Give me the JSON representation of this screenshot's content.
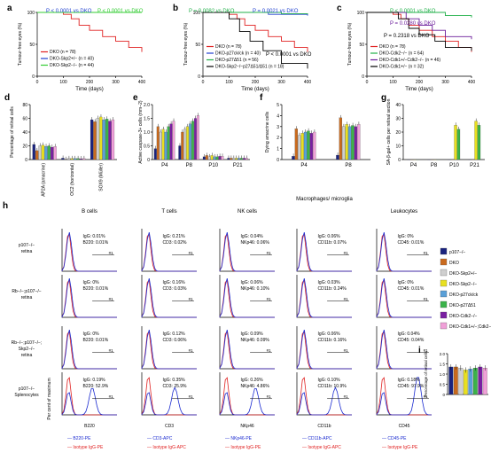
{
  "colors": {
    "dko": "#c0392b",
    "dko_line": "#e02020",
    "skp2": "#33cc33",
    "p27_green": "#22b04a",
    "p27_blue": "#2040d0",
    "black": "#000000",
    "cdk2_purple": "#6a1b9a",
    "bar_p107": "#1a237e",
    "bar_dko": "#c96a1e",
    "bar_skp2het": "#cfcfcf",
    "bar_skp2ko": "#e8e020",
    "bar_p27ck": "#5aa0d8",
    "bar_p27d51": "#3bb34a",
    "bar_cdk2": "#7a1fa2",
    "bar_cdk1cdk2": "#f0a0d8",
    "hist_blue": "#1a2ad0",
    "hist_red": "#e02020"
  },
  "panels": {
    "a": {
      "label": "a",
      "ylabel": "Tumour-free eyes (%)",
      "xlabel": "Time (days)",
      "pvals": [
        "P < 0.0001 vs DKO",
        "P < 0.0001 vs DKO"
      ],
      "legend": [
        "DKO (n = 78)",
        "DKO-Skp2+/− (n = 40)",
        "DKO-Skp2−/− (n = 44)"
      ]
    },
    "b": {
      "label": "b",
      "ylabel": "Tumour-free eyes (%)",
      "xlabel": "Time (days)",
      "pvals": [
        "P = 0.0082 vs DKO",
        "P = 0.0021 vs DKO",
        "P < 0.0001 vs DKO"
      ],
      "legend": [
        "DKO (n = 78)",
        "DKO-p27ck/ck (n = 40)",
        "DKO-p27Δ51 (n = 56)",
        "DKO-Skp2−/−p27Δ51/Δ51 (n = 18)"
      ]
    },
    "c": {
      "label": "c",
      "ylabel": "Tumour-free eyes (%)",
      "xlabel": "Time (days)",
      "pvals": [
        "P < 0.0001 vs DKO",
        "P = 0.0280 vs DKO",
        "P = 0.2318 vs DKO"
      ],
      "legend": [
        "DKO (n = 78)",
        "DKO-Cdk2−/− (n = 64)",
        "DKO-Cdk1+/−Cdk2−/− (n = 46)",
        "DKO-Cdk1+/− (n = 32)"
      ]
    },
    "d": {
      "label": "d",
      "ylabel": "Percentage of retinal cells",
      "groups": [
        "AP2A (amacrine)",
        "OC2 (horizontal)",
        "SOX9 (Müller)"
      ],
      "yticks": [
        "0",
        "20",
        "40",
        "60",
        "80"
      ]
    },
    "e": {
      "label": "e",
      "ylabel": "Active caspase-3+ cells (mm−2)",
      "groups": [
        "P4",
        "P8",
        "P10",
        "P21"
      ],
      "yticks": [
        "0",
        "0.5",
        "1.0",
        "1.5",
        "2.0"
      ]
    },
    "f": {
      "label": "f",
      "ylabel": "Dying amacrine cells",
      "groups": [
        "P4",
        "P8"
      ],
      "yticks": [
        "0",
        "1",
        "2",
        "3",
        "4",
        "5"
      ]
    },
    "g": {
      "label": "g",
      "ylabel": "SA-β-gal+ cells per retinal section",
      "groups": [
        "P4",
        "P8",
        "P10",
        "P21"
      ],
      "yticks": [
        "0",
        "10",
        "20",
        "30",
        "40"
      ]
    },
    "h": {
      "label": "h",
      "columns": [
        "B cells",
        "T cells",
        "NK cells",
        "Macrophages/ microglia",
        "Leukocytes"
      ],
      "rows": [
        "p107−/− retina",
        "Rb−/−;p107−/− retina",
        "Rb−/−;p107−/−; Skp2−/− retina",
        "p107−/− Splenocytes"
      ],
      "stats": [
        [
          [
            "IgG: 0.01%",
            "B220: 0.01%"
          ],
          [
            "IgG: 0.21%",
            "CD3: 0.02%"
          ],
          [
            "IgG: 0.04%",
            "NKp46: 0.06%"
          ],
          [
            "IgG: 0.06%",
            "CD11b: 0.07%"
          ],
          [
            "IgG: 0%",
            "CD45: 0.01%"
          ]
        ],
        [
          [
            "IgG: 0%",
            "B220: 0.01%"
          ],
          [
            "IgG: 0.16%",
            "CD3: 0.03%"
          ],
          [
            "IgG: 0.06%",
            "NKp46: 0.10%"
          ],
          [
            "IgG: 0.03%",
            "CD11b: 0.24%"
          ],
          [
            "IgG: 0%",
            "CD45: 0.01%"
          ]
        ],
        [
          [
            "IgG: 0%",
            "B220: 0.01%"
          ],
          [
            "IgG: 0.12%",
            "CD3: 0.06%"
          ],
          [
            "IgG: 0.09%",
            "NKp46: 0.09%"
          ],
          [
            "IgG: 0.06%",
            "CD11b: 0.16%"
          ],
          [
            "IgG: 0.04%",
            "CD45: 0.04%"
          ]
        ],
        [
          [
            "IgG: 0.19%",
            "B220: 52.9%"
          ],
          [
            "IgG: 0.35%",
            "CD3: 25.9%"
          ],
          [
            "IgG: 0.26%",
            "NKp46: 4.86%"
          ],
          [
            "IgG: 0.10%",
            "CD11b: 10.9%"
          ],
          [
            "IgG: 0.18%",
            "CD45: 97.9%"
          ]
        ]
      ],
      "xlabels": [
        "B220",
        "CD3",
        "NKp46",
        "CD11b",
        "CD45"
      ],
      "ylabel": "Per cent of maximum",
      "legend_blue": [
        "B220-PE",
        "CD3-APC",
        "NKp46-PE",
        "CD11b-APC",
        "CD45-PE"
      ],
      "legend_red": [
        "Isotype IgG-PE",
        "Isotype IgG-APC",
        "Isotype IgG-PE",
        "Isotype IgG-APC",
        "Isotype IgG-PE"
      ],
      "gate": "#1"
    },
    "i": {
      "label": "i",
      "ylabel": "Percentage of retinal cells",
      "yticks": [
        "0",
        "0.5",
        "1.0",
        "1.5",
        "2.0"
      ]
    }
  },
  "legend_key": [
    "p107−/−",
    "DKO",
    "DKO-Skp2+/−",
    "DKO-Skp2−/−",
    "DKO-p27ck/ck",
    "DKO-p27Δ51",
    "DKO-Cdk2−/−",
    "DKO-Cdk1+/−;Cdk2−/−"
  ],
  "tick_labels": {
    "surv_x": [
      "0",
      "100",
      "200",
      "300",
      "400"
    ],
    "surv_y": [
      "0",
      "50",
      "100"
    ]
  },
  "chart_data": [
    {
      "type": "line",
      "panel": "a",
      "xlim": [
        0,
        400
      ],
      "ylim": [
        0,
        100
      ],
      "xlabel": "Time (days)",
      "ylabel": "Tumour-free eyes (%)",
      "series": [
        {
          "name": "DKO (n = 78)",
          "x": [
            0,
            60,
            100,
            130,
            160,
            200,
            250,
            300,
            350,
            400
          ],
          "y": [
            100,
            100,
            97,
            90,
            80,
            72,
            62,
            55,
            45,
            38
          ]
        },
        {
          "name": "DKO-Skp2+/− (n = 40)",
          "x": [
            0,
            400
          ],
          "y": [
            100,
            100
          ]
        },
        {
          "name": "DKO-Skp2−/− (n = 44)",
          "x": [
            0,
            400
          ],
          "y": [
            100,
            100
          ]
        }
      ]
    },
    {
      "type": "line",
      "panel": "b",
      "xlim": [
        0,
        400
      ],
      "ylim": [
        0,
        100
      ],
      "xlabel": "Time (days)",
      "ylabel": "Tumour-free eyes (%)",
      "series": [
        {
          "name": "DKO (n = 78)",
          "x": [
            0,
            60,
            100,
            130,
            160,
            200,
            250,
            300,
            350,
            400
          ],
          "y": [
            100,
            100,
            97,
            90,
            80,
            72,
            62,
            55,
            45,
            38
          ]
        },
        {
          "name": "DKO-p27ck/ck (n = 40)",
          "x": [
            0,
            250,
            400
          ],
          "y": [
            100,
            97,
            95
          ]
        },
        {
          "name": "DKO-p27Δ51 (n = 56)",
          "x": [
            0,
            300,
            400
          ],
          "y": [
            100,
            98,
            97
          ]
        },
        {
          "name": "DKO-Skp2−/−p27Δ51/Δ51 (n = 18)",
          "x": [
            0,
            100,
            140,
            180,
            230,
            300,
            400
          ],
          "y": [
            100,
            90,
            70,
            55,
            40,
            20,
            12
          ]
        }
      ]
    },
    {
      "type": "line",
      "panel": "c",
      "xlim": [
        0,
        400
      ],
      "ylim": [
        0,
        100
      ],
      "xlabel": "Time (days)",
      "ylabel": "Tumour-free eyes (%)",
      "series": [
        {
          "name": "DKO (n = 78)",
          "x": [
            0,
            60,
            100,
            130,
            160,
            200,
            250,
            300,
            350,
            400
          ],
          "y": [
            100,
            100,
            97,
            90,
            80,
            72,
            62,
            55,
            45,
            38
          ]
        },
        {
          "name": "DKO-Cdk2−/− (n = 64)",
          "x": [
            0,
            300,
            400
          ],
          "y": [
            100,
            95,
            92
          ]
        },
        {
          "name": "DKO-Cdk1+/−Cdk2−/− (n = 46)",
          "x": [
            0,
            150,
            200,
            250,
            300,
            400
          ],
          "y": [
            100,
            90,
            80,
            72,
            62,
            58
          ]
        },
        {
          "name": "DKO-Cdk1+/− (n = 32)",
          "x": [
            0,
            120,
            160,
            200,
            260,
            300,
            400
          ],
          "y": [
            100,
            90,
            75,
            65,
            55,
            45,
            40
          ]
        }
      ]
    },
    {
      "type": "bar",
      "panel": "d",
      "categories": [
        "AP2A (amacrine)",
        "OC2 (horizontal)",
        "SOX9 (Müller)"
      ],
      "ylim": [
        0,
        80
      ],
      "series": [
        {
          "name": "p107−/−",
          "values": [
            22,
            2,
            58
          ]
        },
        {
          "name": "DKO",
          "values": [
            13,
            0.3,
            55
          ]
        },
        {
          "name": "DKO-Skp2+/−",
          "values": [
            20,
            1.5,
            60
          ]
        },
        {
          "name": "DKO-Skp2−/−",
          "values": [
            21,
            1.5,
            62
          ]
        },
        {
          "name": "DKO-p27ck/ck",
          "values": [
            19,
            1.5,
            58
          ]
        },
        {
          "name": "DKO-p27Δ51",
          "values": [
            20,
            1.5,
            59
          ]
        },
        {
          "name": "DKO-Cdk2−/−",
          "values": [
            18,
            1.2,
            56
          ]
        },
        {
          "name": "DKO-Cdk1+/−;Cdk2−/−",
          "values": [
            19,
            1.5,
            58
          ]
        }
      ]
    },
    {
      "type": "bar",
      "panel": "e",
      "categories": [
        "P4",
        "P8",
        "P10",
        "P21"
      ],
      "ylim": [
        0,
        2.0
      ],
      "series": [
        {
          "name": "p107−/−",
          "values": [
            0.4,
            0.5,
            0.1,
            0.05
          ]
        },
        {
          "name": "DKO",
          "values": [
            1.2,
            1.0,
            0.15,
            0.05
          ]
        },
        {
          "name": "DKO-Skp2+/−",
          "values": [
            1.0,
            1.1,
            0.1,
            0.05
          ]
        },
        {
          "name": "DKO-Skp2−/−",
          "values": [
            1.1,
            1.2,
            0.15,
            0.05
          ]
        },
        {
          "name": "DKO-p27ck/ck",
          "values": [
            1.0,
            1.3,
            0.1,
            0.05
          ]
        },
        {
          "name": "DKO-p27Δ51",
          "values": [
            1.2,
            1.4,
            0.1,
            0.05
          ]
        },
        {
          "name": "DKO-Cdk2−/−",
          "values": [
            1.3,
            1.5,
            0.12,
            0.05
          ]
        },
        {
          "name": "DKO-Cdk1+/−;Cdk2−/−",
          "values": [
            1.4,
            1.6,
            0.12,
            0.05
          ]
        }
      ]
    },
    {
      "type": "bar",
      "panel": "f",
      "categories": [
        "P4",
        "P8"
      ],
      "ylim": [
        0,
        5
      ],
      "series": [
        {
          "name": "p107−/−",
          "values": [
            0.3,
            0.4
          ]
        },
        {
          "name": "DKO",
          "values": [
            2.8,
            3.8
          ]
        },
        {
          "name": "DKO-Skp2+/−",
          "values": [
            2.2,
            3.0
          ]
        },
        {
          "name": "DKO-Skp2−/−",
          "values": [
            2.4,
            3.2
          ]
        },
        {
          "name": "DKO-p27ck/ck",
          "values": [
            2.5,
            3.0
          ]
        },
        {
          "name": "DKO-p27Δ51",
          "values": [
            2.6,
            3.1
          ]
        },
        {
          "name": "DKO-Cdk2−/−",
          "values": [
            2.4,
            3.0
          ]
        },
        {
          "name": "DKO-Cdk1+/−;Cdk2−/−",
          "values": [
            2.5,
            3.2
          ]
        }
      ]
    },
    {
      "type": "bar",
      "panel": "g",
      "categories": [
        "P4",
        "P8",
        "P10",
        "P21"
      ],
      "ylim": [
        0,
        40
      ],
      "series": [
        {
          "name": "p107−/−",
          "values": [
            0,
            0,
            0,
            0
          ]
        },
        {
          "name": "DKO",
          "values": [
            0,
            0,
            0,
            0
          ]
        },
        {
          "name": "DKO-Skp2−/−",
          "values": [
            0,
            0,
            25,
            28
          ]
        },
        {
          "name": "DKO-p27Δ51",
          "values": [
            0,
            0,
            22,
            25
          ]
        }
      ]
    },
    {
      "type": "bar",
      "panel": "i",
      "categories": [
        "p107−/−",
        "DKO",
        "DKO-Skp2+/−",
        "DKO-Skp2−/−",
        "DKO-p27ck/ck",
        "DKO-p27Δ51",
        "DKO-Cdk2−/−",
        "DKO-Cdk1+/−;Cdk2−/−"
      ],
      "ylim": [
        0,
        2.0
      ],
      "values": [
        1.35,
        1.35,
        1.3,
        1.2,
        1.25,
        1.3,
        1.35,
        1.3
      ]
    }
  ]
}
